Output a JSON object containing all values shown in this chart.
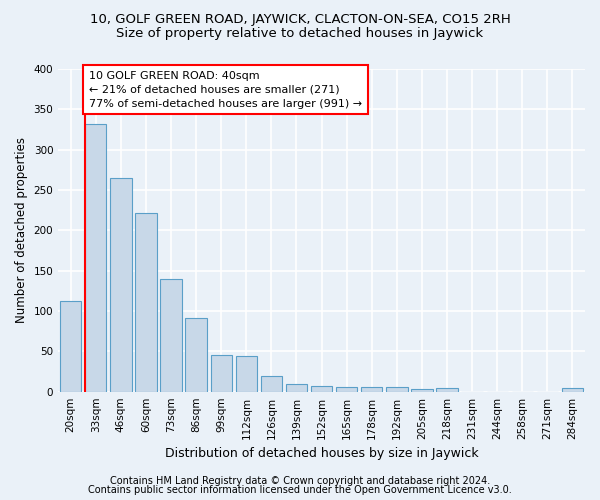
{
  "title1": "10, GOLF GREEN ROAD, JAYWICK, CLACTON-ON-SEA, CO15 2RH",
  "title2": "Size of property relative to detached houses in Jaywick",
  "xlabel": "Distribution of detached houses by size in Jaywick",
  "ylabel": "Number of detached properties",
  "bar_labels": [
    "20sqm",
    "33sqm",
    "46sqm",
    "60sqm",
    "73sqm",
    "86sqm",
    "99sqm",
    "112sqm",
    "126sqm",
    "139sqm",
    "152sqm",
    "165sqm",
    "178sqm",
    "192sqm",
    "205sqm",
    "218sqm",
    "231sqm",
    "244sqm",
    "258sqm",
    "271sqm",
    "284sqm"
  ],
  "bar_values": [
    113,
    332,
    265,
    221,
    140,
    91,
    45,
    44,
    19,
    10,
    7,
    6,
    6,
    6,
    3,
    4,
    0,
    0,
    0,
    0,
    5
  ],
  "bar_color": "#c8d8e8",
  "bar_edge_color": "#5a9fc8",
  "annotation_box_text": "10 GOLF GREEN ROAD: 40sqm\n← 21% of detached houses are smaller (271)\n77% of semi-detached houses are larger (991) →",
  "red_box_color": "red",
  "ylim": [
    0,
    400
  ],
  "yticks": [
    0,
    50,
    100,
    150,
    200,
    250,
    300,
    350,
    400
  ],
  "footer1": "Contains HM Land Registry data © Crown copyright and database right 2024.",
  "footer2": "Contains public sector information licensed under the Open Government Licence v3.0.",
  "background_color": "#eaf1f8",
  "plot_bg_color": "#eaf1f8",
  "grid_color": "#ffffff",
  "title1_fontsize": 9.5,
  "title2_fontsize": 9.5,
  "xlabel_fontsize": 9,
  "ylabel_fontsize": 8.5,
  "tick_fontsize": 7.5,
  "footer_fontsize": 7,
  "ann_fontsize": 8
}
